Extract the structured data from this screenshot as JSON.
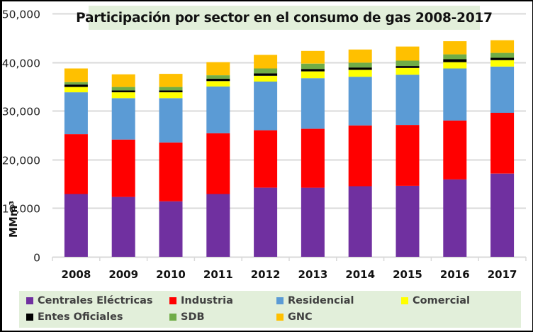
{
  "chart_data": {
    "type": "bar",
    "stacked": true,
    "title": "Participación por sector en el consumo de gas 2008-2017",
    "xlabel": "",
    "ylabel": "MMm³",
    "ylim": [
      0,
      50000
    ],
    "yticks": [
      0,
      10000,
      20000,
      30000,
      40000,
      50000
    ],
    "ytick_labels": [
      "0",
      "10,000",
      "20,000",
      "30,000",
      "40,000",
      "50,000"
    ],
    "grid": true,
    "legend_position": "bottom",
    "categories": [
      "2008",
      "2009",
      "2010",
      "2011",
      "2012",
      "2013",
      "2014",
      "2015",
      "2016",
      "2017"
    ],
    "series": [
      {
        "name": "Centrales Eléctricas",
        "color": "#7030a0",
        "values": [
          12900,
          12300,
          11400,
          12900,
          14200,
          14200,
          14500,
          14600,
          15900,
          17100
        ]
      },
      {
        "name": "Industria",
        "color": "#ff0000",
        "values": [
          12300,
          11800,
          12100,
          12500,
          11800,
          12100,
          12500,
          12500,
          12100,
          12500
        ]
      },
      {
        "name": "Residencial",
        "color": "#5b9bd5",
        "values": [
          8600,
          8500,
          9100,
          9600,
          10000,
          10400,
          10000,
          10300,
          10700,
          9500
        ]
      },
      {
        "name": "Comercial",
        "color": "#ffff00",
        "values": [
          1100,
          1200,
          1200,
          1100,
          1200,
          1400,
          1400,
          1400,
          1300,
          1300
        ]
      },
      {
        "name": "Entes Oficiales",
        "color": "#000000",
        "values": [
          500,
          400,
          400,
          500,
          500,
          500,
          500,
          400,
          600,
          500
        ]
      },
      {
        "name": "SDB",
        "color": "#70ad47",
        "values": [
          500,
          700,
          700,
          700,
          1000,
          1100,
          1000,
          1100,
          1000,
          1000
        ]
      },
      {
        "name": "GNC",
        "color": "#ffc000",
        "values": [
          2800,
          2600,
          2700,
          2700,
          2800,
          2600,
          2700,
          2900,
          2700,
          2600
        ]
      }
    ]
  },
  "colors": {
    "title_bg": "#e2efda",
    "legend_bg": "#e2efda",
    "gridline": "#d9d9d9"
  }
}
